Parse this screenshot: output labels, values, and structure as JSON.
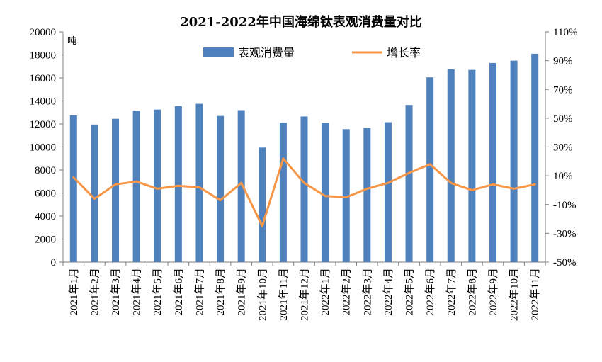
{
  "chart_data": {
    "type": "bar+line",
    "title": "2021-2022年中国海绵钛表观消费量对比",
    "ylabel_left": "吨",
    "categories": [
      "2021年1月",
      "2021年2月",
      "2021年3月",
      "2021年4月",
      "2021年5月",
      "2021年6月",
      "2021年7月",
      "2021年8月",
      "2021年9月",
      "2021年10月",
      "2021年11月",
      "2021年12月",
      "2022年1月",
      "2022年2月",
      "2022年3月",
      "2022年4月",
      "2022年5月",
      "2022年6月",
      "2022年7月",
      "2022年8月",
      "2022年9月",
      "2022年10月",
      "2022年11月"
    ],
    "series": [
      {
        "name": "表观消费量",
        "type": "bar",
        "axis": "left",
        "color": "#4f81bd",
        "values": [
          12750,
          11950,
          12450,
          13150,
          13250,
          13550,
          13750,
          12700,
          13200,
          9950,
          12100,
          12650,
          12100,
          11550,
          11650,
          12150,
          13650,
          16050,
          16750,
          16700,
          17300,
          17500,
          18100
        ]
      },
      {
        "name": "增长率",
        "type": "line",
        "axis": "right",
        "color": "#f79646",
        "values": [
          9,
          -6,
          4,
          6,
          1,
          3,
          2,
          -7,
          5,
          -25,
          22,
          5,
          -4,
          -5,
          1,
          5,
          12,
          18,
          5,
          0,
          4,
          1,
          4
        ]
      }
    ],
    "ylim_left": [
      0,
      20000
    ],
    "yticks_left": [
      "0",
      "2000",
      "4000",
      "6000",
      "8000",
      "10000",
      "12000",
      "14000",
      "16000",
      "18000",
      "20000"
    ],
    "ylim_right": [
      -50,
      110
    ],
    "yticks_right": [
      "-50%",
      "-30%",
      "-10%",
      "10%",
      "30%",
      "50%",
      "70%",
      "90%",
      "110%"
    ],
    "grid": false,
    "legend_position": "top-center"
  }
}
